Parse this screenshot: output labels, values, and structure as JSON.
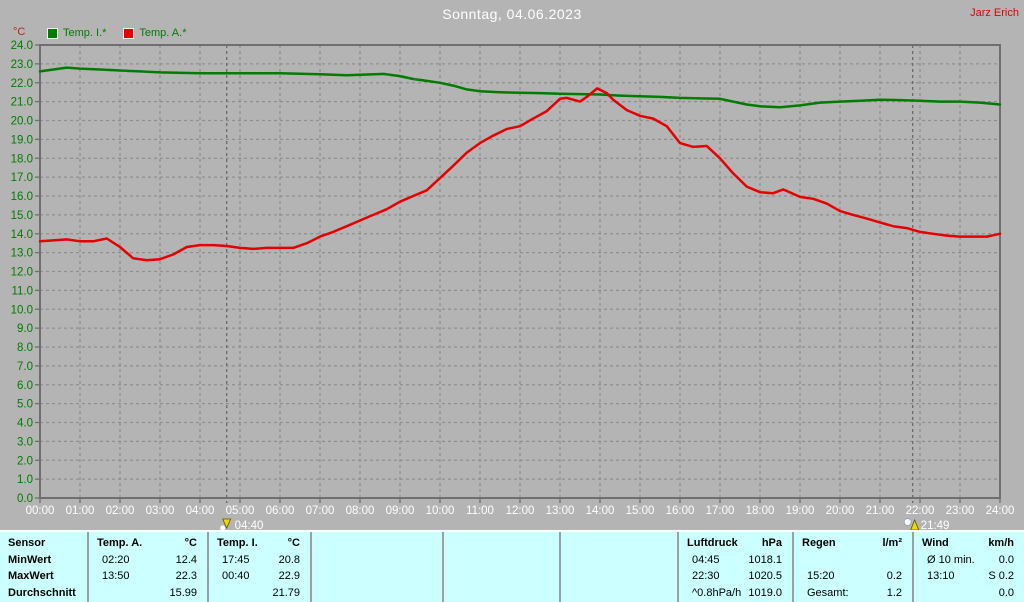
{
  "header": {
    "title": "Sonntag, 04.06.2023",
    "user": "Jarz Erich"
  },
  "chart_data": {
    "type": "line",
    "title": "Sonntag, 04.06.2023",
    "ylabel": "°C",
    "xlabel": "",
    "xlim_hours": [
      0,
      24
    ],
    "ylim": [
      0,
      24
    ],
    "y_tick_step": 1.0,
    "grid": true,
    "legend_position": "top-left",
    "x_tick_labels": [
      "00:00",
      "01:00",
      "02:00",
      "03:00",
      "04:00",
      "05:00",
      "06:00",
      "07:00",
      "08:00",
      "09:00",
      "10:00",
      "11:00",
      "12:00",
      "13:00",
      "14:00",
      "15:00",
      "16:00",
      "17:00",
      "18:00",
      "19:00",
      "20:00",
      "21:00",
      "22:00",
      "23:00",
      "24:00"
    ],
    "sun_markers": [
      {
        "type": "sunrise",
        "hour": 4.667,
        "label": "04:40"
      },
      {
        "type": "sunset",
        "hour": 21.817,
        "label": "21:49"
      }
    ],
    "series": [
      {
        "name": "Temp. I.*",
        "color": "#007c00",
        "x": [
          0,
          0.67,
          1,
          1.5,
          2,
          2.5,
          3,
          4,
          5,
          6,
          7,
          7.67,
          8,
          8.58,
          9,
          9.33,
          9.67,
          10,
          10.33,
          10.67,
          11,
          11.5,
          12,
          12.5,
          13,
          13.5,
          14,
          14.5,
          15,
          15.5,
          16,
          16.5,
          17,
          17.33,
          17.67,
          18,
          18.5,
          19,
          19.5,
          20,
          20.5,
          21,
          21.5,
          22,
          22.5,
          23,
          23.5,
          24
        ],
        "values": [
          22.6,
          22.8,
          22.75,
          22.7,
          22.65,
          22.6,
          22.55,
          22.5,
          22.5,
          22.5,
          22.45,
          22.4,
          22.42,
          22.47,
          22.35,
          22.2,
          22.1,
          22.0,
          21.85,
          21.65,
          21.55,
          21.5,
          21.47,
          21.45,
          21.42,
          21.4,
          21.38,
          21.32,
          21.28,
          21.25,
          21.2,
          21.17,
          21.15,
          21.0,
          20.85,
          20.75,
          20.7,
          20.8,
          20.95,
          21.0,
          21.05,
          21.1,
          21.08,
          21.05,
          21.0,
          21.0,
          20.95,
          20.85
        ]
      },
      {
        "name": "Temp. A.*",
        "color": "#e60000",
        "x": [
          0,
          0.33,
          0.67,
          1,
          1.33,
          1.67,
          2,
          2.33,
          2.67,
          3,
          3.33,
          3.67,
          4,
          4.33,
          4.67,
          5,
          5.33,
          5.67,
          6,
          6.33,
          6.67,
          7,
          7.33,
          7.67,
          8,
          8.33,
          8.67,
          9,
          9.33,
          9.67,
          10,
          10.33,
          10.67,
          11,
          11.33,
          11.67,
          12,
          12.33,
          12.67,
          13,
          13.17,
          13.33,
          13.5,
          13.67,
          13.93,
          14.17,
          14.33,
          14.67,
          15,
          15.33,
          15.67,
          16,
          16.33,
          16.67,
          17,
          17.33,
          17.67,
          18,
          18.33,
          18.58,
          19,
          19.33,
          19.67,
          20,
          20.33,
          20.67,
          21,
          21.33,
          21.67,
          22,
          22.33,
          22.67,
          23,
          23.33,
          23.67,
          24
        ],
        "values": [
          13.6,
          13.65,
          13.7,
          13.6,
          13.6,
          13.75,
          13.3,
          12.7,
          12.6,
          12.65,
          12.9,
          13.3,
          13.4,
          13.4,
          13.35,
          13.25,
          13.2,
          13.25,
          13.25,
          13.25,
          13.5,
          13.85,
          14.1,
          14.4,
          14.7,
          15.0,
          15.3,
          15.7,
          16.0,
          16.3,
          16.95,
          17.6,
          18.3,
          18.8,
          19.2,
          19.55,
          19.7,
          20.1,
          20.5,
          21.15,
          21.2,
          21.1,
          21.0,
          21.25,
          21.7,
          21.45,
          21.1,
          20.55,
          20.25,
          20.1,
          19.7,
          18.8,
          18.6,
          18.65,
          18.0,
          17.2,
          16.5,
          16.2,
          16.15,
          16.35,
          15.95,
          15.85,
          15.6,
          15.2,
          15.0,
          14.8,
          14.6,
          14.4,
          14.3,
          14.1,
          14.0,
          13.9,
          13.85,
          13.85,
          13.85,
          14.0
        ]
      }
    ]
  },
  "table": {
    "row_headers": [
      "Sensor",
      "MinWert",
      "MaxWert",
      "Durchschnitt"
    ],
    "columns": [
      {
        "header": "Temp. A.",
        "unit": "°C",
        "rows": [
          [
            "02:20",
            "12.4"
          ],
          [
            "13:50",
            "22.3"
          ],
          [
            "",
            "15.99"
          ]
        ]
      },
      {
        "header": "Temp. I.",
        "unit": "°C",
        "rows": [
          [
            "17:45",
            "20.8"
          ],
          [
            "00:40",
            "22.9"
          ],
          [
            "",
            "21.79"
          ]
        ]
      },
      {
        "header": "",
        "unit": "",
        "rows": [
          [
            "",
            ""
          ],
          [
            "",
            ""
          ],
          [
            "",
            ""
          ]
        ]
      },
      {
        "header": "",
        "unit": "",
        "rows": [
          [
            "",
            ""
          ],
          [
            "",
            ""
          ],
          [
            "",
            ""
          ]
        ]
      },
      {
        "header": "",
        "unit": "",
        "rows": [
          [
            "",
            ""
          ],
          [
            "",
            ""
          ],
          [
            "",
            ""
          ]
        ]
      },
      {
        "header": "Luftdruck",
        "unit": "hPa",
        "rows": [
          [
            "04:45",
            "1018.1"
          ],
          [
            "22:30",
            "1020.5"
          ],
          [
            "^0.8hPa/h",
            "1019.0"
          ]
        ]
      },
      {
        "header": "Regen",
        "unit": "l/m²",
        "rows": [
          [
            "",
            ""
          ],
          [
            "15:20",
            "0.2"
          ],
          [
            "Gesamt:",
            "1.2"
          ]
        ]
      },
      {
        "header": "Wind",
        "unit": "km/h",
        "rows": [
          [
            "Ø 10 min.",
            "0.0"
          ],
          [
            "13:10",
            "S 0.2"
          ],
          [
            "",
            "0.0"
          ]
        ]
      }
    ]
  },
  "colors": {
    "background": "#b4b4b4",
    "frame": "#6f6f6f",
    "grid": "#8f8f8f",
    "y_tick_text": "#007c00",
    "x_tick_text": "#ffffff",
    "unit_text": "#b22822",
    "title_text": "#ffffff",
    "user_text": "#e00000",
    "table_background": "#ccffff",
    "sun_marker": "#f2d800"
  }
}
